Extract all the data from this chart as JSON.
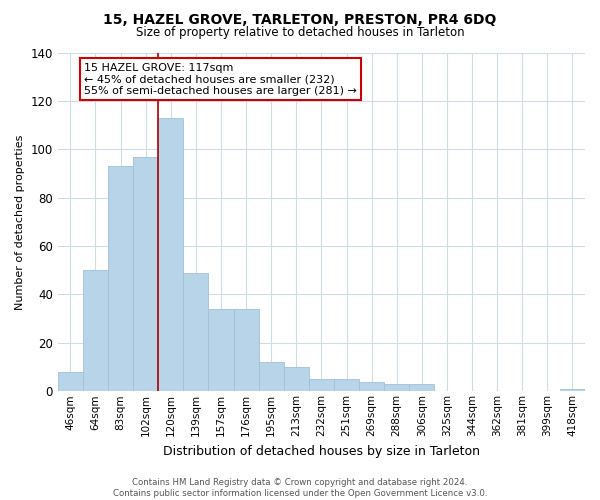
{
  "title": "15, HAZEL GROVE, TARLETON, PRESTON, PR4 6DQ",
  "subtitle": "Size of property relative to detached houses in Tarleton",
  "xlabel": "Distribution of detached houses by size in Tarleton",
  "ylabel": "Number of detached properties",
  "categories": [
    "46sqm",
    "64sqm",
    "83sqm",
    "102sqm",
    "120sqm",
    "139sqm",
    "157sqm",
    "176sqm",
    "195sqm",
    "213sqm",
    "232sqm",
    "251sqm",
    "269sqm",
    "288sqm",
    "306sqm",
    "325sqm",
    "344sqm",
    "362sqm",
    "381sqm",
    "399sqm",
    "418sqm"
  ],
  "values": [
    8,
    50,
    93,
    97,
    113,
    49,
    34,
    34,
    12,
    10,
    5,
    5,
    4,
    3,
    3,
    0,
    0,
    0,
    0,
    0,
    1
  ],
  "bar_color": "#b8d4e8",
  "bar_edge_color": "#a0c0d8",
  "highlight_line_color": "#aa0000",
  "red_line_index": 3.5,
  "ylim": [
    0,
    140
  ],
  "yticks": [
    0,
    20,
    40,
    60,
    80,
    100,
    120,
    140
  ],
  "annotation_title": "15 HAZEL GROVE: 117sqm",
  "annotation_line1": "← 45% of detached houses are smaller (232)",
  "annotation_line2": "55% of semi-detached houses are larger (281) →",
  "annotation_box_color": "#ffffff",
  "annotation_box_edge": "#cc0000",
  "footer_line1": "Contains HM Land Registry data © Crown copyright and database right 2024.",
  "footer_line2": "Contains public sector information licensed under the Open Government Licence v3.0.",
  "background_color": "#ffffff",
  "grid_color": "#ccdde8"
}
